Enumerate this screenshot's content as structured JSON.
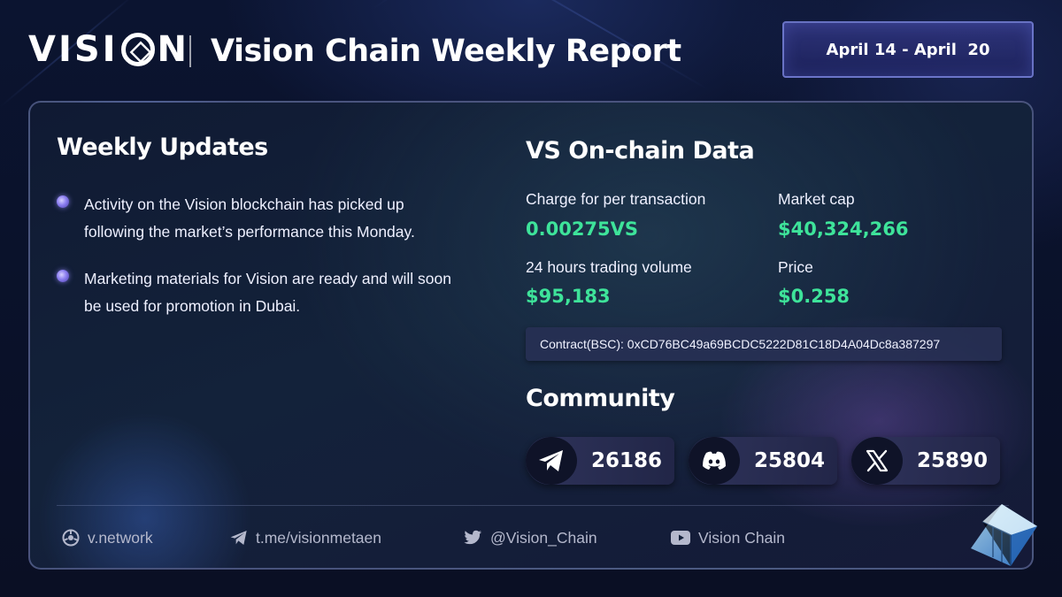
{
  "header": {
    "logo_left": "VISI",
    "logo_right": "N",
    "title": "Vision Chain Weekly Report",
    "date_range": "April 14 - April  20"
  },
  "weekly_updates": {
    "title": "Weekly Updates",
    "items": [
      "Activity on the Vision blockchain has picked up following the market’s performance this Monday.",
      "Marketing materials for Vision are ready and will soon be used for promotion in Dubai."
    ]
  },
  "onchain": {
    "title": "VS On-chain Data",
    "charge_label": "Charge for per transaction",
    "charge_value": "0.00275VS",
    "market_cap_label": "Market cap",
    "market_cap_value": "$40,324,266",
    "volume_label": "24 hours trading volume",
    "volume_value": "$95,183",
    "price_label": "Price",
    "price_value": "$0.258",
    "contract": "Contract(BSC): 0xCD76BC49a69BCDC5222D81C18D4A04Dc8a387297"
  },
  "community": {
    "title": "Community",
    "telegram": {
      "icon": "telegram-icon",
      "count": "26186"
    },
    "discord": {
      "icon": "discord-icon",
      "count": "25804"
    },
    "x": {
      "icon": "x-icon",
      "count": "25890"
    }
  },
  "footer": {
    "website": "v.network",
    "telegram": "t.me/visionmetaen",
    "twitter": "@Vision_Chain",
    "youtube": "Vision Chain"
  },
  "colors": {
    "accent_green": "#3ee39a",
    "background": "#0b1430",
    "date_box": "#2e337a"
  }
}
